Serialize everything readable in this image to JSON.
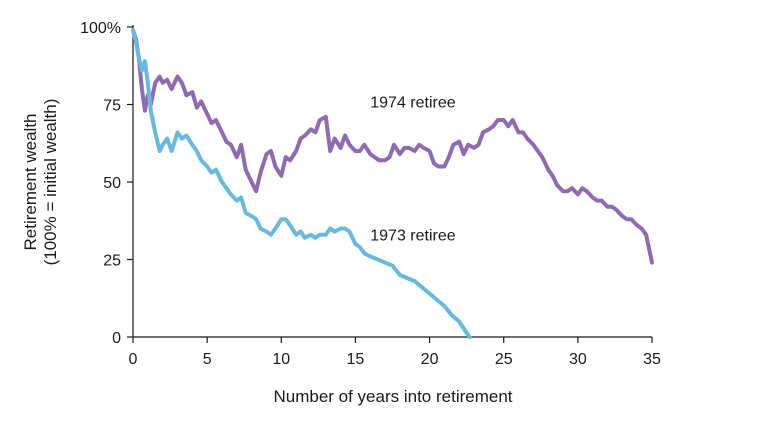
{
  "chart_data": {
    "type": "line",
    "xlabel": "Number of years into retirement",
    "ylabel_lines": [
      "Retirement wealth",
      "(100% = initial wealth)"
    ],
    "xlim": [
      0,
      35
    ],
    "ylim": [
      0,
      100
    ],
    "x_ticks": [
      {
        "value": 0,
        "label": "0"
      },
      {
        "value": 5,
        "label": "5"
      },
      {
        "value": 10,
        "label": "10"
      },
      {
        "value": 15,
        "label": "15"
      },
      {
        "value": 20,
        "label": "20"
      },
      {
        "value": 25,
        "label": "25"
      },
      {
        "value": 30,
        "label": "30"
      },
      {
        "value": 35,
        "label": "35"
      }
    ],
    "y_ticks": [
      {
        "value": 0,
        "label": "0"
      },
      {
        "value": 25,
        "label": "25"
      },
      {
        "value": 50,
        "label": "50"
      },
      {
        "value": 75,
        "label": "75"
      },
      {
        "value": 100,
        "label": "100%"
      }
    ],
    "grid": false,
    "series": [
      {
        "name": "1974 retiree",
        "color": "#8e6bb0",
        "label_at": [
          16,
          76
        ],
        "x": [
          0,
          0.2,
          0.4,
          0.6,
          0.8,
          1.0,
          1.2,
          1.5,
          1.8,
          2.0,
          2.3,
          2.6,
          3.0,
          3.3,
          3.6,
          4.0,
          4.3,
          4.6,
          5.0,
          5.3,
          5.6,
          6.0,
          6.3,
          6.6,
          7.0,
          7.3,
          7.6,
          8.0,
          8.3,
          8.6,
          9.0,
          9.3,
          9.6,
          10.0,
          10.3,
          10.6,
          11.0,
          11.3,
          11.6,
          12.0,
          12.3,
          12.6,
          13.0,
          13.3,
          13.6,
          14.0,
          14.3,
          14.6,
          15.0,
          15.3,
          15.6,
          16.0,
          16.3,
          16.6,
          17.0,
          17.3,
          17.6,
          18.0,
          18.3,
          18.6,
          19.0,
          19.3,
          19.6,
          20.0,
          20.3,
          20.6,
          21.0,
          21.3,
          21.6,
          22.0,
          22.3,
          22.6,
          23.0,
          23.3,
          23.6,
          24.0,
          24.3,
          24.6,
          25.0,
          25.3,
          25.6,
          26.0,
          26.3,
          26.6,
          27.0,
          27.3,
          27.6,
          28.0,
          28.3,
          28.6,
          29.0,
          29.3,
          29.6,
          30.0,
          30.3,
          30.6,
          31.0,
          31.3,
          31.6,
          32.0,
          32.3,
          32.6,
          33.0,
          33.3,
          33.6,
          34.0,
          34.3,
          34.6,
          35.0
        ],
        "y": [
          99,
          96,
          90,
          80,
          73,
          78,
          75,
          82,
          84,
          82,
          83,
          80,
          84,
          82,
          78,
          79,
          74,
          76,
          72,
          69,
          70,
          66,
          63,
          62,
          58,
          62,
          54,
          50,
          47,
          53,
          59,
          60,
          55,
          52,
          58,
          57,
          60,
          64,
          65,
          67,
          66,
          70,
          71,
          60,
          64,
          61,
          65,
          62,
          60,
          60,
          62,
          59,
          58,
          57,
          57,
          58,
          62,
          59,
          61,
          61,
          60,
          62,
          61,
          60,
          56,
          55,
          55,
          58,
          62,
          63,
          59,
          62,
          61,
          62,
          66,
          67,
          68,
          70,
          70,
          68,
          70,
          66,
          66,
          64,
          62,
          60,
          58,
          54,
          52,
          49,
          47,
          47,
          48,
          46,
          48,
          47,
          45,
          44,
          44,
          42,
          42,
          41,
          39,
          38,
          38,
          36,
          35,
          33,
          24
        ]
      },
      {
        "name": "1973 retiree",
        "color": "#6ab8df",
        "label_at": [
          16,
          33
        ],
        "x": [
          0,
          0.2,
          0.4,
          0.6,
          0.8,
          1.0,
          1.2,
          1.5,
          1.8,
          2.0,
          2.3,
          2.6,
          3.0,
          3.3,
          3.6,
          4.0,
          4.3,
          4.6,
          5.0,
          5.3,
          5.6,
          6.0,
          6.3,
          6.6,
          7.0,
          7.3,
          7.6,
          8.0,
          8.3,
          8.6,
          9.0,
          9.3,
          9.6,
          10.0,
          10.3,
          10.6,
          11.0,
          11.3,
          11.6,
          12.0,
          12.3,
          12.6,
          13.0,
          13.3,
          13.6,
          14.0,
          14.3,
          14.6,
          15.0,
          15.3,
          15.6,
          16.0,
          16.5,
          17.0,
          17.5,
          18.0,
          18.5,
          19.0,
          19.5,
          20.0,
          20.5,
          21.0,
          21.5,
          22.0,
          22.4,
          22.7
        ],
        "y": [
          99,
          95,
          90,
          86,
          89,
          82,
          73,
          66,
          60,
          62,
          64,
          60,
          66,
          64,
          65,
          62,
          60,
          57,
          55,
          53,
          54,
          50,
          48,
          46,
          44,
          45,
          40,
          39,
          38,
          35,
          34,
          33,
          35,
          38,
          38,
          36,
          33,
          34,
          32,
          33,
          32,
          33,
          33,
          35,
          34,
          35,
          35,
          34,
          30,
          29,
          27,
          26,
          25,
          24,
          23,
          20,
          19,
          18,
          16,
          14,
          12,
          10,
          7,
          5,
          2,
          0
        ]
      }
    ]
  }
}
